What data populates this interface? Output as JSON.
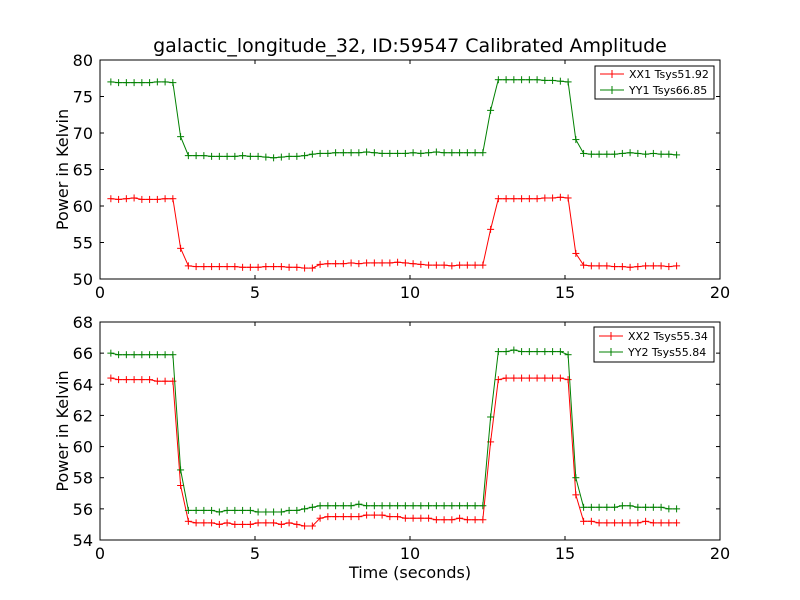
{
  "chart_data": [
    {
      "type": "line",
      "title": "galactic_longitude_32, ID:59547 Calibrated Amplitude",
      "xlabel": "",
      "ylabel": "Power in Kelvin",
      "xlim": [
        0,
        20
      ],
      "ylim": [
        50,
        80
      ],
      "xticks": [
        0,
        5,
        10,
        15,
        20
      ],
      "yticks": [
        50,
        55,
        60,
        65,
        70,
        75,
        80
      ],
      "xtick_labels": [
        "0",
        "5",
        "10",
        "15",
        "20"
      ],
      "ytick_labels": [
        "50",
        "55",
        "60",
        "65",
        "70",
        "75",
        "80"
      ],
      "grid": false,
      "legend": "top-right",
      "x": [
        0.35,
        0.6,
        0.85,
        1.1,
        1.35,
        1.6,
        1.85,
        2.1,
        2.35,
        2.6,
        2.85,
        3.1,
        3.35,
        3.6,
        3.85,
        4.1,
        4.35,
        4.6,
        4.85,
        5.1,
        5.35,
        5.6,
        5.85,
        6.1,
        6.35,
        6.6,
        6.85,
        7.1,
        7.35,
        7.6,
        7.85,
        8.1,
        8.35,
        8.6,
        8.85,
        9.1,
        9.35,
        9.6,
        9.85,
        10.1,
        10.35,
        10.6,
        10.85,
        11.1,
        11.35,
        11.6,
        11.85,
        12.1,
        12.35,
        12.6,
        12.85,
        13.1,
        13.35,
        13.6,
        13.85,
        14.1,
        14.35,
        14.6,
        14.85,
        15.1,
        15.35,
        15.6,
        15.85,
        16.1,
        16.35,
        16.6,
        16.85,
        17.1,
        17.35,
        17.6,
        17.85,
        18.1,
        18.35,
        18.6
      ],
      "series": [
        {
          "name": "XX1 Tsys51.92",
          "color": "#ff0000",
          "values": [
            61.0,
            60.9,
            61.0,
            61.1,
            60.9,
            60.9,
            60.9,
            61.0,
            61.0,
            54.2,
            51.8,
            51.7,
            51.7,
            51.7,
            51.7,
            51.7,
            51.7,
            51.6,
            51.6,
            51.6,
            51.7,
            51.7,
            51.7,
            51.6,
            51.6,
            51.5,
            51.5,
            52.0,
            52.1,
            52.1,
            52.1,
            52.2,
            52.1,
            52.2,
            52.2,
            52.2,
            52.2,
            52.3,
            52.2,
            52.1,
            52.0,
            51.9,
            51.9,
            51.9,
            51.8,
            51.9,
            51.9,
            51.9,
            51.9,
            56.8,
            61.0,
            61.0,
            61.0,
            61.0,
            61.0,
            61.0,
            61.1,
            61.1,
            61.2,
            61.1,
            53.5,
            51.9,
            51.8,
            51.8,
            51.8,
            51.7,
            51.7,
            51.6,
            51.7,
            51.8,
            51.8,
            51.8,
            51.7,
            51.8
          ]
        },
        {
          "name": "YY1 Tsys66.85",
          "color": "#008000",
          "values": [
            77.0,
            76.9,
            76.9,
            76.9,
            76.9,
            76.9,
            77.0,
            77.0,
            76.9,
            69.5,
            66.9,
            66.9,
            66.9,
            66.8,
            66.8,
            66.8,
            66.8,
            66.9,
            66.8,
            66.8,
            66.7,
            66.6,
            66.7,
            66.8,
            66.8,
            66.9,
            67.1,
            67.2,
            67.2,
            67.3,
            67.3,
            67.3,
            67.3,
            67.4,
            67.3,
            67.2,
            67.2,
            67.2,
            67.2,
            67.3,
            67.2,
            67.3,
            67.4,
            67.3,
            67.3,
            67.3,
            67.3,
            67.3,
            67.3,
            73.1,
            77.3,
            77.3,
            77.3,
            77.3,
            77.3,
            77.3,
            77.2,
            77.2,
            77.1,
            77.0,
            69.1,
            67.2,
            67.1,
            67.1,
            67.1,
            67.1,
            67.2,
            67.3,
            67.2,
            67.1,
            67.2,
            67.1,
            67.1,
            67.0
          ]
        }
      ]
    },
    {
      "type": "line",
      "title": "",
      "xlabel": "Time (seconds)",
      "ylabel": "Power in Kelvin",
      "xlim": [
        0,
        20
      ],
      "ylim": [
        54,
        68
      ],
      "xticks": [
        0,
        5,
        10,
        15,
        20
      ],
      "yticks": [
        54,
        56,
        58,
        60,
        62,
        64,
        66,
        68
      ],
      "xtick_labels": [
        "0",
        "5",
        "10",
        "15",
        "20"
      ],
      "ytick_labels": [
        "54",
        "56",
        "58",
        "60",
        "62",
        "64",
        "66",
        "68"
      ],
      "grid": false,
      "legend": "top-right",
      "x": [
        0.35,
        0.6,
        0.85,
        1.1,
        1.35,
        1.6,
        1.85,
        2.1,
        2.35,
        2.6,
        2.85,
        3.1,
        3.35,
        3.6,
        3.85,
        4.1,
        4.35,
        4.6,
        4.85,
        5.1,
        5.35,
        5.6,
        5.85,
        6.1,
        6.35,
        6.6,
        6.85,
        7.1,
        7.35,
        7.6,
        7.85,
        8.1,
        8.35,
        8.6,
        8.85,
        9.1,
        9.35,
        9.6,
        9.85,
        10.1,
        10.35,
        10.6,
        10.85,
        11.1,
        11.35,
        11.6,
        11.85,
        12.1,
        12.35,
        12.6,
        12.85,
        13.1,
        13.35,
        13.6,
        13.85,
        14.1,
        14.35,
        14.6,
        14.85,
        15.1,
        15.35,
        15.6,
        15.85,
        16.1,
        16.35,
        16.6,
        16.85,
        17.1,
        17.35,
        17.6,
        17.85,
        18.1,
        18.35,
        18.6
      ],
      "series": [
        {
          "name": "XX2 Tsys55.34",
          "color": "#ff0000",
          "values": [
            64.4,
            64.3,
            64.3,
            64.3,
            64.3,
            64.3,
            64.2,
            64.2,
            64.2,
            57.5,
            55.2,
            55.1,
            55.1,
            55.1,
            55.0,
            55.1,
            55.0,
            55.0,
            55.0,
            55.1,
            55.1,
            55.1,
            55.0,
            55.1,
            55.0,
            54.9,
            54.9,
            55.4,
            55.5,
            55.5,
            55.5,
            55.5,
            55.5,
            55.6,
            55.6,
            55.6,
            55.5,
            55.5,
            55.4,
            55.4,
            55.4,
            55.4,
            55.3,
            55.3,
            55.3,
            55.4,
            55.3,
            55.3,
            55.3,
            60.3,
            64.3,
            64.4,
            64.4,
            64.4,
            64.4,
            64.4,
            64.4,
            64.4,
            64.4,
            64.3,
            56.9,
            55.2,
            55.2,
            55.1,
            55.1,
            55.1,
            55.1,
            55.1,
            55.1,
            55.2,
            55.1,
            55.1,
            55.1,
            55.1
          ]
        },
        {
          "name": "YY2 Tsys55.84",
          "color": "#008000",
          "values": [
            66.0,
            65.9,
            65.9,
            65.9,
            65.9,
            65.9,
            65.9,
            65.9,
            65.9,
            58.5,
            55.9,
            55.9,
            55.9,
            55.9,
            55.8,
            55.9,
            55.9,
            55.9,
            55.9,
            55.8,
            55.8,
            55.8,
            55.8,
            55.9,
            55.9,
            56.0,
            56.1,
            56.2,
            56.2,
            56.2,
            56.2,
            56.2,
            56.3,
            56.2,
            56.2,
            56.2,
            56.2,
            56.2,
            56.2,
            56.2,
            56.2,
            56.2,
            56.2,
            56.2,
            56.2,
            56.2,
            56.2,
            56.2,
            56.2,
            61.9,
            66.1,
            66.1,
            66.2,
            66.1,
            66.1,
            66.1,
            66.1,
            66.1,
            66.1,
            65.9,
            58.0,
            56.1,
            56.1,
            56.1,
            56.1,
            56.1,
            56.2,
            56.2,
            56.1,
            56.1,
            56.1,
            56.1,
            56.0,
            56.0
          ]
        }
      ]
    }
  ]
}
